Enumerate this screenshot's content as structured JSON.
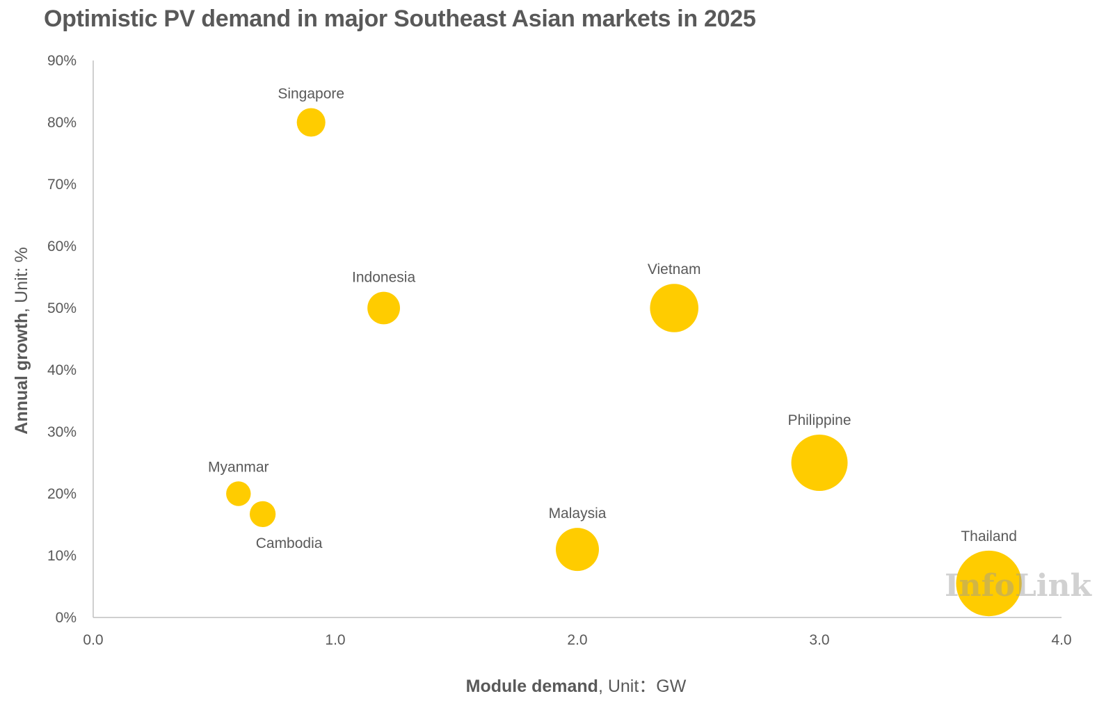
{
  "title": "Optimistic PV demand in major Southeast Asian markets in 2025",
  "watermark": "InfoLink",
  "chart_data": {
    "type": "scatter",
    "variant": "bubble",
    "title": "Optimistic PV demand in major Southeast Asian markets in 2025",
    "xlabel": {
      "bold": "Module demand",
      "rest": ", Unit：GW"
    },
    "ylabel": {
      "bold": "Annual growth",
      "rest": ", Unit: %"
    },
    "xlim": [
      0,
      4
    ],
    "ylim": [
      0,
      90
    ],
    "x_ticks": [
      "0.0",
      "1.0",
      "2.0",
      "3.0",
      "4.0"
    ],
    "y_ticks": [
      "0%",
      "10%",
      "20%",
      "30%",
      "40%",
      "50%",
      "60%",
      "70%",
      "80%",
      "90%"
    ],
    "grid": false,
    "legend": "none",
    "bubble_color": "#FFCC00",
    "points": [
      {
        "label": "Singapore",
        "x": 0.9,
        "y": 80,
        "label_pos": "above"
      },
      {
        "label": "Indonesia",
        "x": 1.2,
        "y": 50,
        "label_pos": "above"
      },
      {
        "label": "Vietnam",
        "x": 2.4,
        "y": 50,
        "label_pos": "above"
      },
      {
        "label": "Philippine",
        "x": 3.0,
        "y": 25,
        "label_pos": "above"
      },
      {
        "label": "Myanmar",
        "x": 0.6,
        "y": 20,
        "label_pos": "above"
      },
      {
        "label": "Cambodia",
        "x": 0.7,
        "y": 16.7,
        "label_pos": "below"
      },
      {
        "label": "Malaysia",
        "x": 2.0,
        "y": 11,
        "label_pos": "above"
      },
      {
        "label": "Thailand",
        "x": 3.7,
        "y": 5.5,
        "label_pos": "above"
      }
    ]
  }
}
